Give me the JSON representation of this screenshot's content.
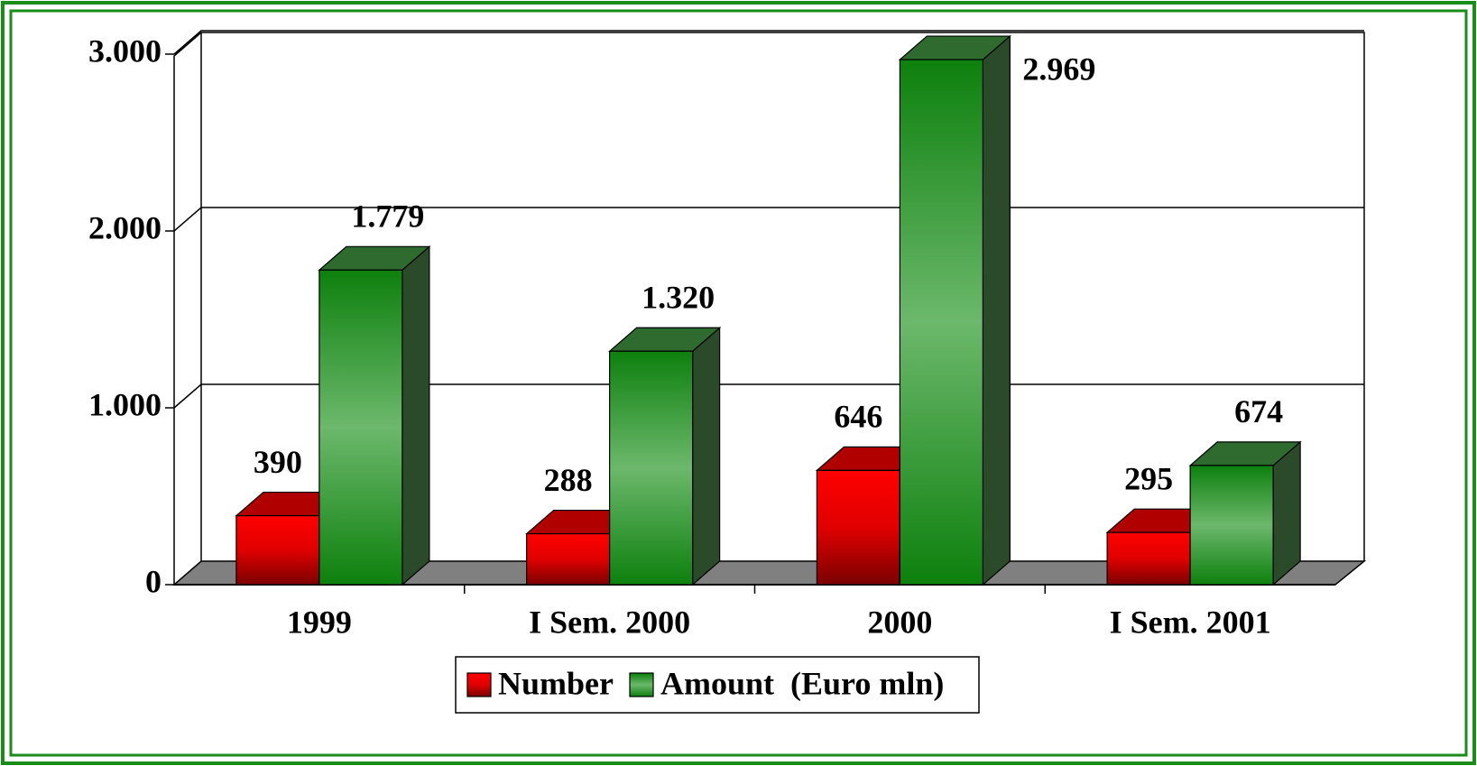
{
  "chart_data": {
    "type": "bar3d",
    "categories": [
      "1999",
      "I Sem. 2000",
      "2000",
      "I Sem. 2001"
    ],
    "series": [
      {
        "name": "Number",
        "color": "#ff0000",
        "values": [
          390,
          288,
          646,
          295
        ]
      },
      {
        "name": "Amount  (Euro mln)",
        "color": "#1a8c1a",
        "values": [
          1779,
          1320,
          2969,
          674
        ],
        "value_labels": [
          "1.779",
          "1.320",
          "2.969",
          "674"
        ]
      }
    ],
    "ylim": [
      0,
      3000
    ],
    "yticks": [
      0,
      {
        "value": 1000,
        "label": "1.000"
      },
      {
        "value": 2000,
        "label": "2.000"
      },
      {
        "value": 3000,
        "label": "3.000"
      }
    ],
    "grid": true,
    "legend": "bottom"
  }
}
